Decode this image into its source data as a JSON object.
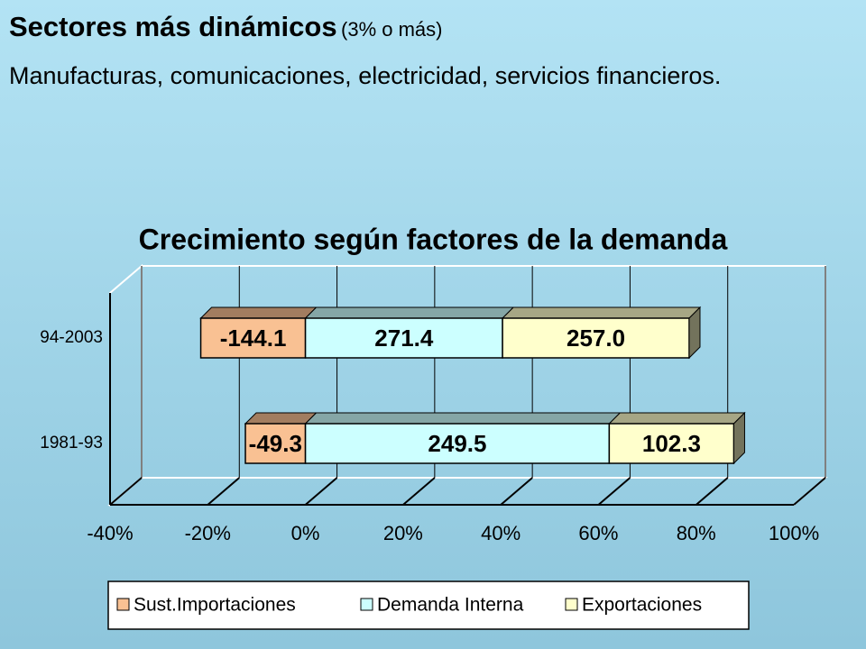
{
  "slide": {
    "title": "Sectores más dinámicos",
    "title_note": "(3% o más)",
    "body": "Manufacturas, comunicaciones, electricidad, servicios financieros."
  },
  "chart_data": {
    "type": "bar_stacked_100",
    "orientation": "horizontal",
    "title": "Crecimiento según factores de la demanda",
    "categories": [
      "94-2003",
      "1981-93"
    ],
    "series": [
      {
        "name": "Sust.Importaciones",
        "color": "#f9c193",
        "values": [
          -144.1,
          -49.3
        ],
        "value_labels": [
          "-144.1",
          "-49.3"
        ]
      },
      {
        "name": "Demanda Interna",
        "color": "#ccffff",
        "values": [
          271.4,
          249.5
        ],
        "value_labels": [
          "271.4",
          "249.5"
        ]
      },
      {
        "name": "Exportaciones",
        "color": "#ffffcc",
        "values": [
          257.0,
          102.3
        ],
        "value_labels": [
          "257.0",
          "102.3"
        ]
      }
    ],
    "xlim": [
      -40,
      100
    ],
    "xticks": [
      {
        "value": -40,
        "label": "-40%"
      },
      {
        "value": -20,
        "label": "-20%"
      },
      {
        "value": 0,
        "label": "0%"
      },
      {
        "value": 20,
        "label": "20%"
      },
      {
        "value": 40,
        "label": "40%"
      },
      {
        "value": 60,
        "label": "60%"
      },
      {
        "value": 80,
        "label": "80%"
      },
      {
        "value": 100,
        "label": "100%"
      }
    ],
    "grid": true,
    "legend": "bottom"
  }
}
